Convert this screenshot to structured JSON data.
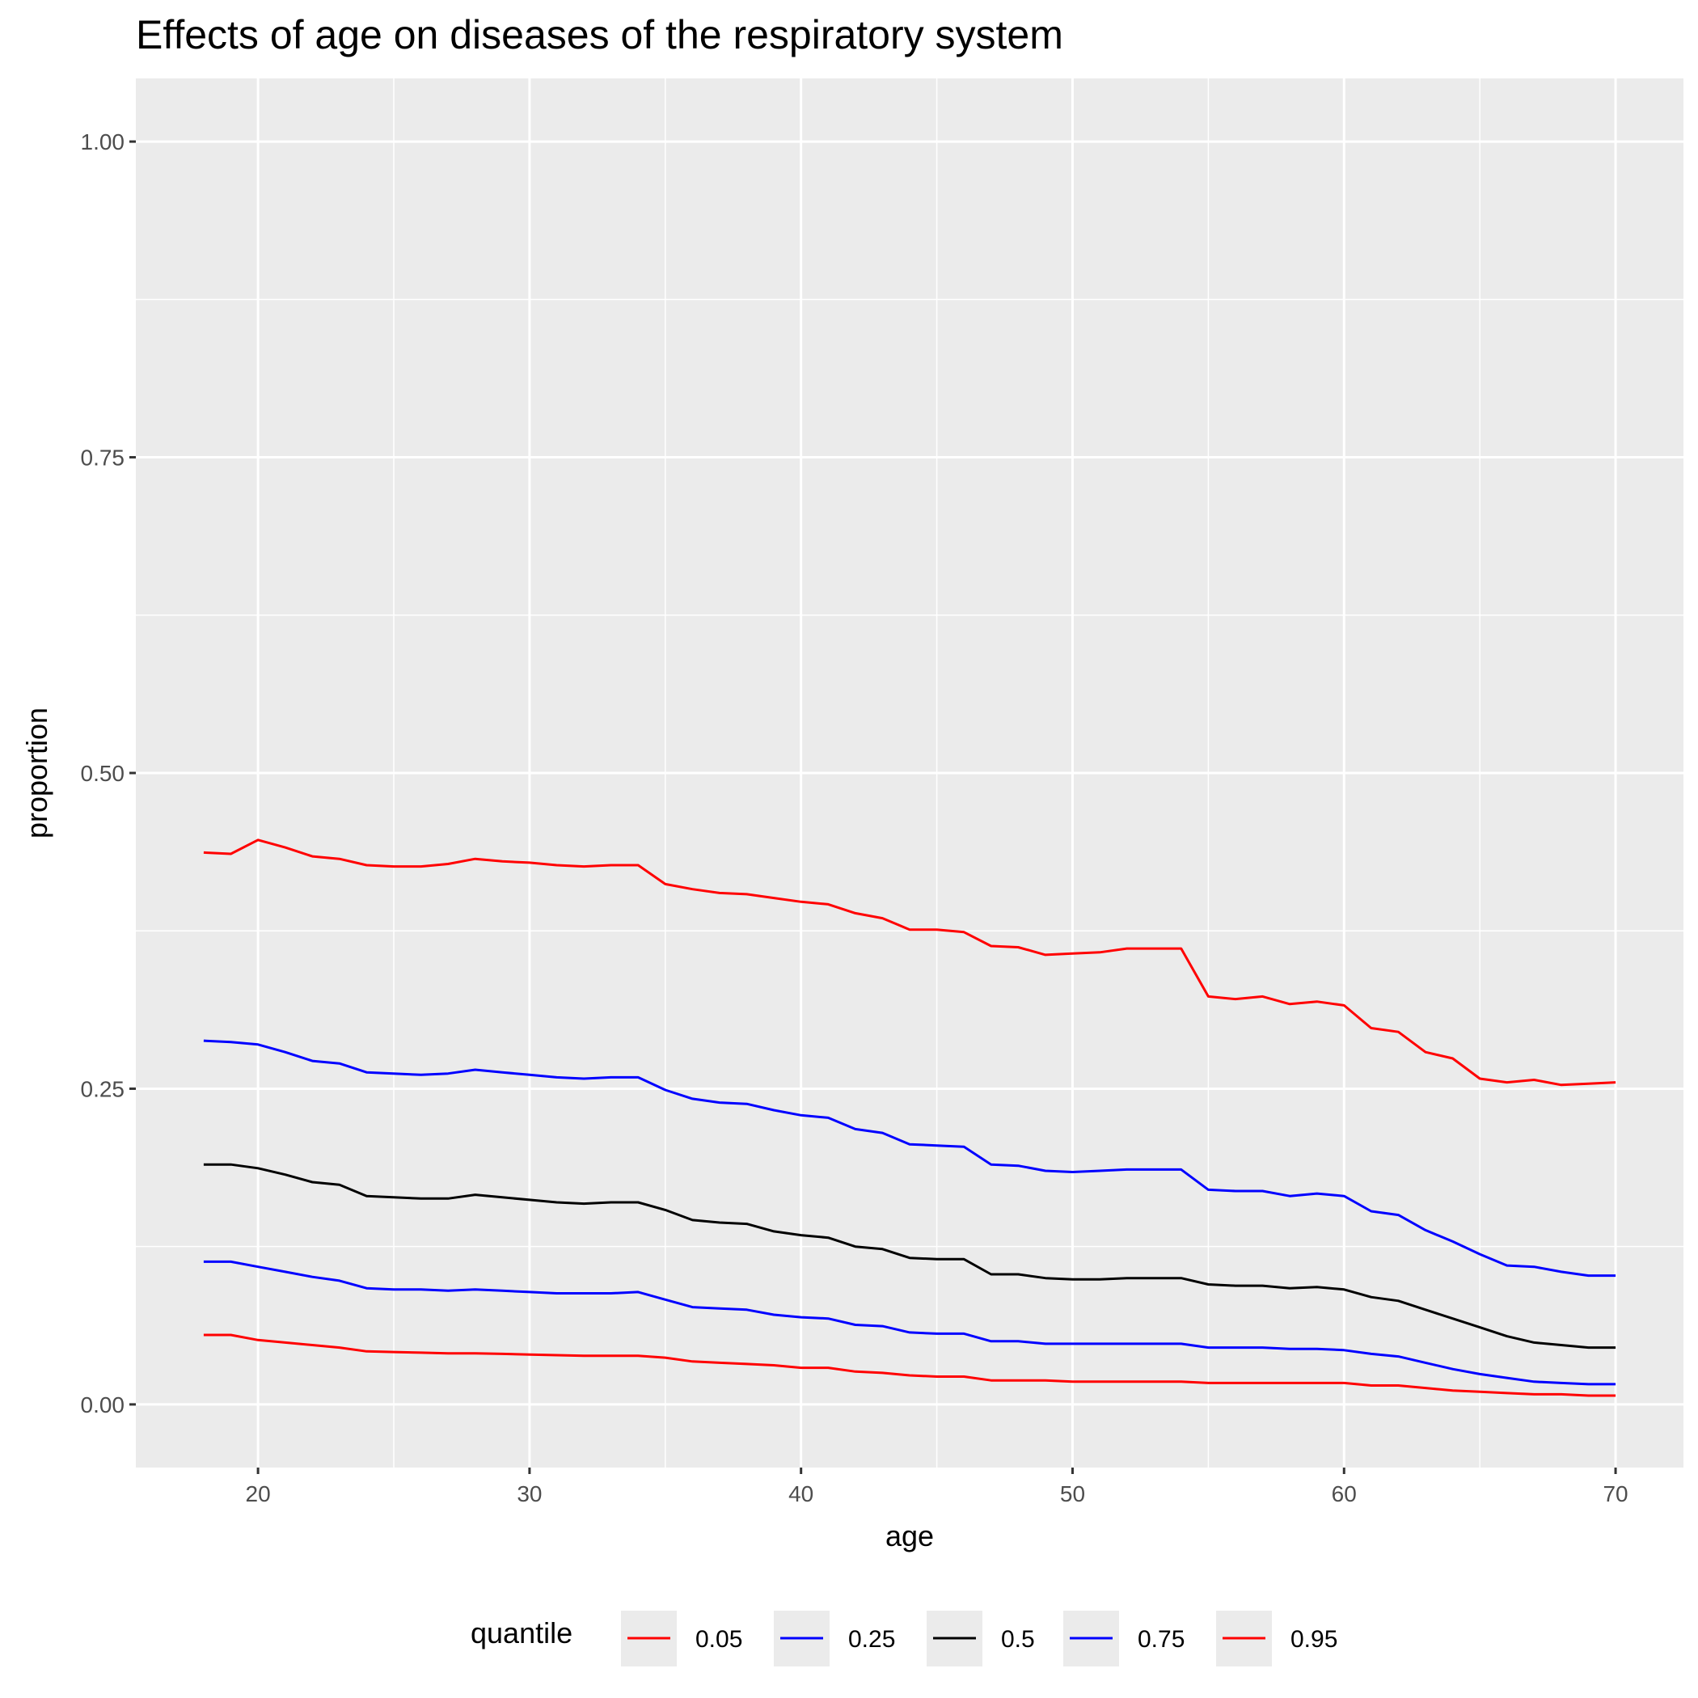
{
  "chart_data": {
    "type": "line",
    "title": "Effects of age on diseases of the respiratory system",
    "xlabel": "age",
    "ylabel": "proportion",
    "xlim": [
      15.5,
      72.5
    ],
    "ylim": [
      -0.05,
      1.05
    ],
    "x_ticks": [
      20,
      30,
      40,
      50,
      60,
      70
    ],
    "y_ticks": [
      0.0,
      0.25,
      0.5,
      0.75,
      1.0
    ],
    "y_tick_labels": [
      "0.00",
      "0.25",
      "0.50",
      "0.75",
      "1.00"
    ],
    "grid": true,
    "legend_title": "quantile",
    "legend_position": "bottom",
    "x": [
      18,
      19,
      20,
      21,
      22,
      23,
      24,
      25,
      26,
      27,
      28,
      29,
      30,
      31,
      32,
      33,
      34,
      35,
      36,
      37,
      38,
      39,
      40,
      41,
      42,
      43,
      44,
      45,
      46,
      47,
      48,
      49,
      50,
      51,
      52,
      53,
      54,
      55,
      56,
      57,
      58,
      59,
      60,
      61,
      62,
      63,
      64,
      65,
      66,
      67,
      68,
      69,
      70
    ],
    "series": [
      {
        "name": "0.05",
        "color": "#ff0000",
        "values": [
          0.055,
          0.055,
          0.051,
          0.049,
          0.047,
          0.045,
          0.042,
          0.0415,
          0.041,
          0.0405,
          0.0405,
          0.04,
          0.0395,
          0.039,
          0.0385,
          0.0385,
          0.0385,
          0.037,
          0.034,
          0.033,
          0.032,
          0.031,
          0.029,
          0.029,
          0.026,
          0.025,
          0.023,
          0.022,
          0.022,
          0.019,
          0.019,
          0.019,
          0.018,
          0.018,
          0.018,
          0.018,
          0.018,
          0.017,
          0.017,
          0.017,
          0.017,
          0.017,
          0.017,
          0.015,
          0.015,
          0.013,
          0.011,
          0.01,
          0.009,
          0.008,
          0.008,
          0.007,
          0.007
        ]
      },
      {
        "name": "0.25",
        "color": "#0000ff",
        "values": [
          0.113,
          0.113,
          0.109,
          0.105,
          0.101,
          0.098,
          0.092,
          0.091,
          0.091,
          0.09,
          0.091,
          0.09,
          0.089,
          0.088,
          0.088,
          0.088,
          0.089,
          0.083,
          0.077,
          0.076,
          0.075,
          0.071,
          0.069,
          0.068,
          0.063,
          0.062,
          0.057,
          0.056,
          0.056,
          0.05,
          0.05,
          0.048,
          0.048,
          0.048,
          0.048,
          0.048,
          0.048,
          0.045,
          0.045,
          0.045,
          0.044,
          0.044,
          0.043,
          0.04,
          0.038,
          0.033,
          0.028,
          0.024,
          0.021,
          0.018,
          0.017,
          0.016,
          0.016
        ]
      },
      {
        "name": "0.5",
        "color": "#000000",
        "values": [
          0.19,
          0.19,
          0.187,
          0.182,
          0.176,
          0.174,
          0.165,
          0.164,
          0.163,
          0.163,
          0.166,
          0.164,
          0.162,
          0.16,
          0.159,
          0.16,
          0.16,
          0.154,
          0.146,
          0.144,
          0.143,
          0.137,
          0.134,
          0.132,
          0.125,
          0.123,
          0.116,
          0.115,
          0.115,
          0.103,
          0.103,
          0.1,
          0.099,
          0.099,
          0.1,
          0.1,
          0.1,
          0.095,
          0.094,
          0.094,
          0.092,
          0.093,
          0.091,
          0.085,
          0.082,
          0.075,
          0.068,
          0.061,
          0.054,
          0.049,
          0.047,
          0.045,
          0.045
        ]
      },
      {
        "name": "0.75",
        "color": "#0000ff",
        "values": [
          0.288,
          0.287,
          0.285,
          0.279,
          0.272,
          0.27,
          0.263,
          0.262,
          0.261,
          0.262,
          0.265,
          0.263,
          0.261,
          0.259,
          0.258,
          0.259,
          0.259,
          0.249,
          0.242,
          0.239,
          0.238,
          0.233,
          0.229,
          0.227,
          0.218,
          0.215,
          0.206,
          0.205,
          0.204,
          0.19,
          0.189,
          0.185,
          0.184,
          0.185,
          0.186,
          0.186,
          0.186,
          0.17,
          0.169,
          0.169,
          0.165,
          0.167,
          0.165,
          0.153,
          0.15,
          0.138,
          0.129,
          0.119,
          0.11,
          0.109,
          0.105,
          0.102,
          0.102
        ]
      },
      {
        "name": "0.95",
        "color": "#ff0000",
        "values": [
          0.437,
          0.436,
          0.447,
          0.441,
          0.434,
          0.432,
          0.427,
          0.426,
          0.426,
          0.428,
          0.432,
          0.43,
          0.429,
          0.427,
          0.426,
          0.427,
          0.427,
          0.412,
          0.408,
          0.405,
          0.404,
          0.401,
          0.398,
          0.396,
          0.389,
          0.385,
          0.376,
          0.376,
          0.374,
          0.363,
          0.362,
          0.356,
          0.357,
          0.358,
          0.361,
          0.361,
          0.361,
          0.323,
          0.321,
          0.323,
          0.317,
          0.319,
          0.316,
          0.298,
          0.295,
          0.279,
          0.274,
          0.258,
          0.255,
          0.257,
          0.253,
          0.254,
          0.255
        ]
      }
    ]
  }
}
